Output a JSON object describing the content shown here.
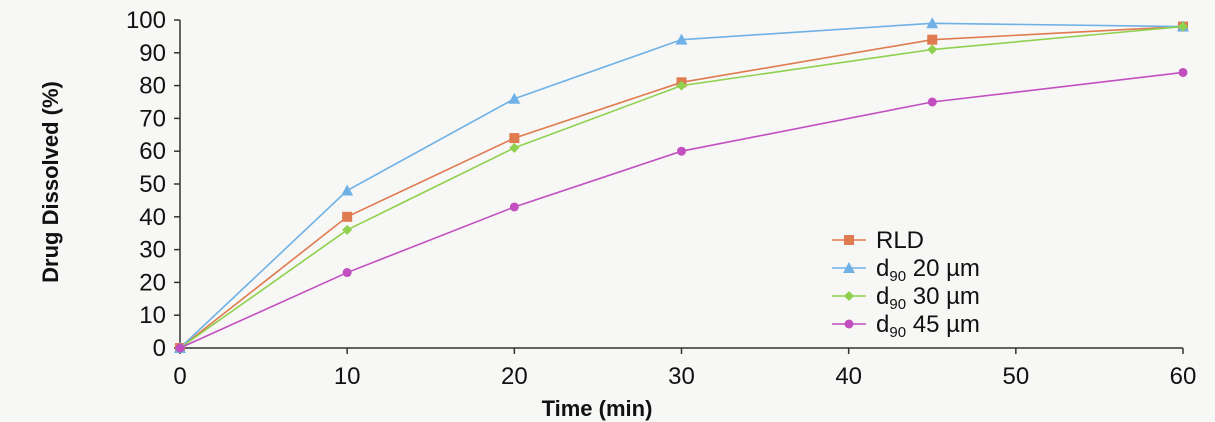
{
  "chart_data": {
    "type": "line",
    "xlabel": "Time (min)",
    "ylabel": "Drug Dissolved (%)",
    "xlim": [
      0,
      60
    ],
    "ylim": [
      0,
      100
    ],
    "x_ticks": [
      "0",
      "10",
      "20",
      "30",
      "40",
      "50",
      "60"
    ],
    "y_ticks": [
      "0",
      "10",
      "20",
      "30",
      "40",
      "50",
      "60",
      "70",
      "80",
      "90",
      "100"
    ],
    "grid": false,
    "legend_position": "bottom-right",
    "series": [
      {
        "name": "RLD",
        "legend_label": "RLD",
        "color": "#e07a4f",
        "marker": "square",
        "x": [
          0,
          10,
          20,
          30,
          45,
          60
        ],
        "y": [
          0,
          40,
          64,
          81,
          94,
          98
        ]
      },
      {
        "name": "d90 20 µm",
        "legend_base": "d",
        "legend_sub": "90",
        "legend_rest": " 20 µm",
        "color": "#6fb1e6",
        "marker": "triangle",
        "x": [
          0,
          10,
          20,
          30,
          45,
          60
        ],
        "y": [
          0,
          48,
          76,
          94,
          99,
          98
        ]
      },
      {
        "name": "d90 30 µm",
        "legend_base": "d",
        "legend_sub": "90",
        "legend_rest": " 30 µm",
        "color": "#8fd14f",
        "marker": "diamond",
        "x": [
          0,
          10,
          20,
          30,
          45,
          60
        ],
        "y": [
          0,
          36,
          61,
          80,
          91,
          98
        ]
      },
      {
        "name": "d90 45 µm",
        "legend_base": "d",
        "legend_sub": "90",
        "legend_rest": " 45 µm",
        "color": "#c24fbf",
        "marker": "circle",
        "x": [
          0,
          10,
          20,
          30,
          45,
          60
        ],
        "y": [
          0,
          23,
          43,
          60,
          75,
          84
        ]
      }
    ]
  }
}
